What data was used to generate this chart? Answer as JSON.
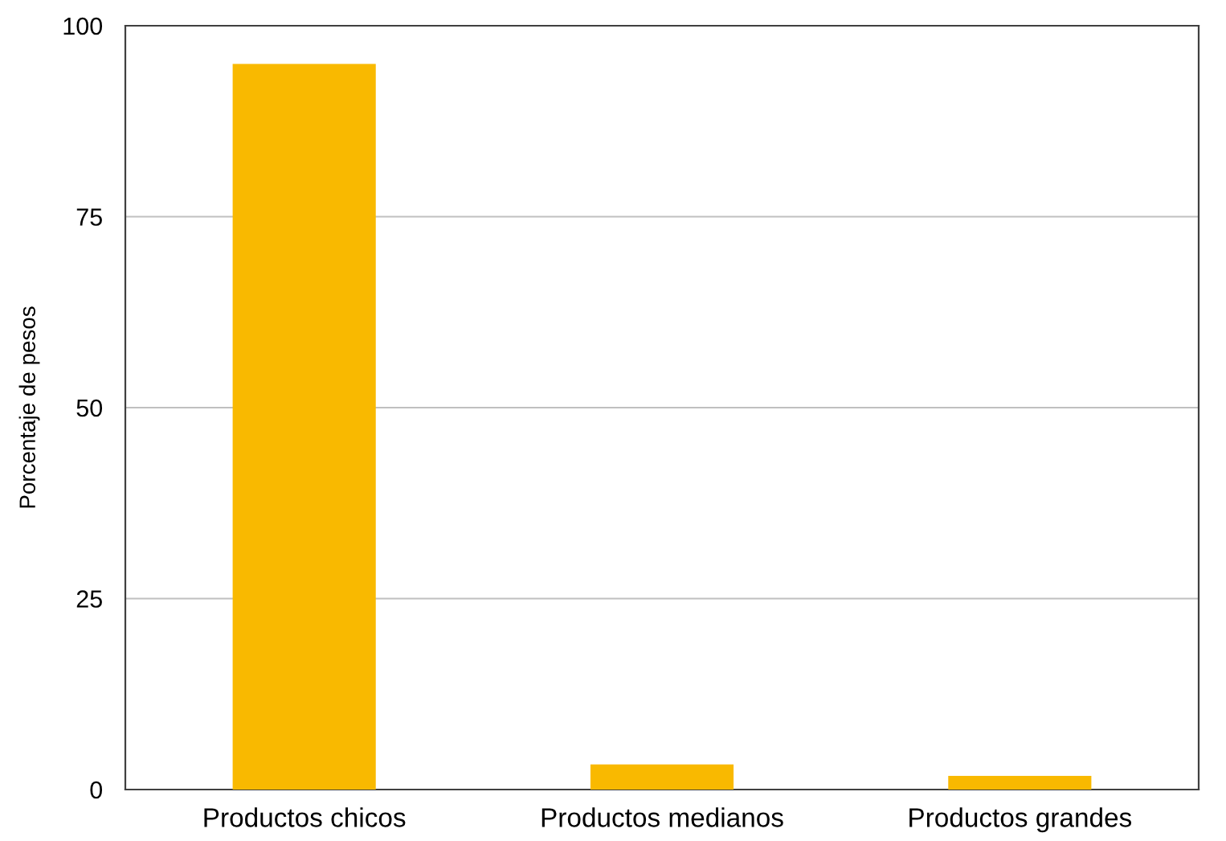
{
  "chart_data": {
    "type": "bar",
    "ylabel": "Porcentaje de pesos",
    "categories": [
      "Productos chicos",
      "Productos medianos",
      "Productos grandes"
    ],
    "values": [
      95,
      3.3,
      1.8
    ],
    "color": "#f9b900",
    "ylim": [
      0,
      100
    ],
    "yticks": [
      0,
      25,
      50,
      75,
      100
    ],
    "grid": "y"
  }
}
